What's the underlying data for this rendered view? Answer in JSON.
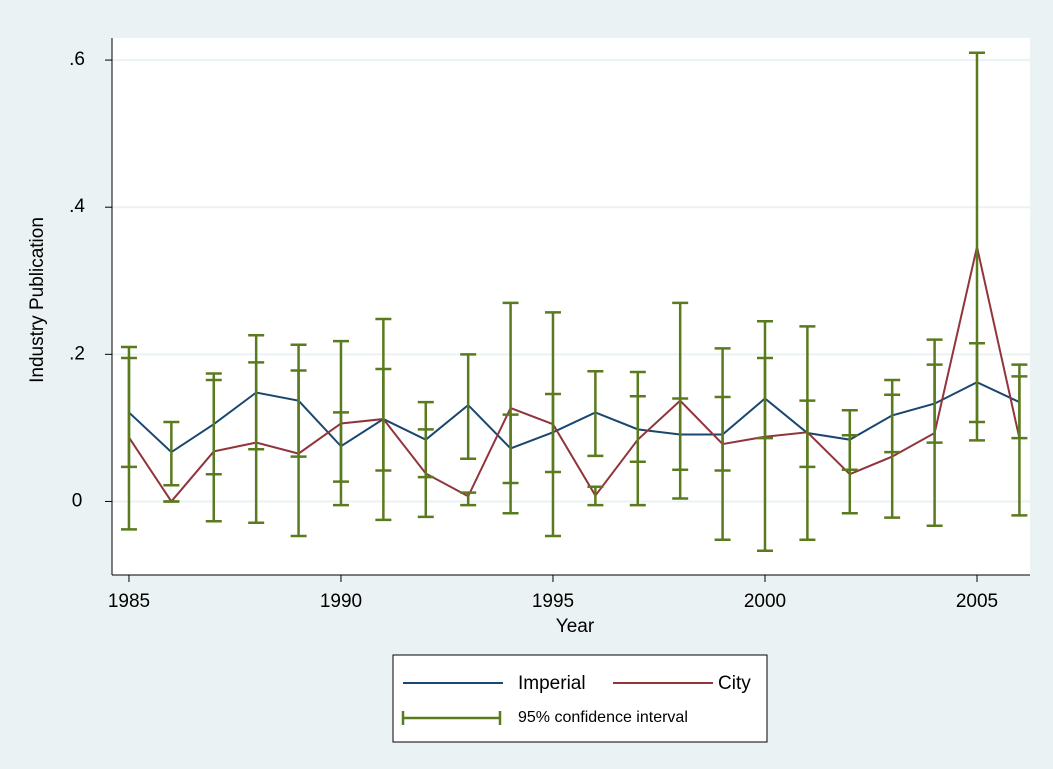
{
  "chart_data": {
    "type": "line",
    "x_label": "Year",
    "y_label": "Industry Publication",
    "x": [
      1985,
      1986,
      1987,
      1988,
      1989,
      1990,
      1991,
      1992,
      1993,
      1994,
      1995,
      1996,
      1997,
      1998,
      1999,
      2000,
      2001,
      2002,
      2003,
      2004,
      2005,
      2006
    ],
    "series": [
      {
        "name": "Imperial",
        "color": "#1a476f",
        "values": [
          0.121,
          0.067,
          0.105,
          0.148,
          0.137,
          0.075,
          0.112,
          0.084,
          0.131,
          0.072,
          0.094,
          0.121,
          0.098,
          0.091,
          0.091,
          0.14,
          0.093,
          0.084,
          0.117,
          0.133,
          0.162,
          0.135
        ],
        "ci_low": [
          0.047,
          0.022,
          0.037,
          0.071,
          0.061,
          0.027,
          0.042,
          0.033,
          0.058,
          0.025,
          0.04,
          0.062,
          0.054,
          0.043,
          0.042,
          0.086,
          0.047,
          0.043,
          0.067,
          0.08,
          0.108,
          0.086
        ],
        "ci_high": [
          0.195,
          0.108,
          0.165,
          0.226,
          0.213,
          0.121,
          0.18,
          0.135,
          0.2,
          0.118,
          0.146,
          0.177,
          0.143,
          0.14,
          0.142,
          0.195,
          0.137,
          0.124,
          0.165,
          0.186,
          0.215,
          0.186
        ]
      },
      {
        "name": "City",
        "color": "#90353b",
        "values": [
          0.087,
          0,
          0.068,
          0.08,
          0.065,
          0.106,
          0.112,
          0.038,
          0.007,
          0.127,
          0.105,
          0.008,
          0.084,
          0.137,
          0.078,
          0.088,
          0.094,
          0.037,
          0.061,
          0.093,
          0.346,
          0.086
        ],
        "ci_low": [
          -0.038,
          0,
          -0.027,
          -0.029,
          -0.047,
          -0.005,
          -0.025,
          -0.021,
          -0.005,
          -0.016,
          -0.047,
          -0.005,
          -0.005,
          0.004,
          -0.052,
          -0.067,
          -0.052,
          -0.016,
          -0.022,
          -0.033,
          0.083,
          -0.019
        ],
        "ci_high": [
          0.21,
          0,
          0.174,
          0.189,
          0.178,
          0.218,
          0.248,
          0.098,
          0.012,
          0.27,
          0.257,
          0.02,
          0.176,
          0.27,
          0.208,
          0.245,
          0.238,
          0.09,
          0.145,
          0.22,
          0.61,
          0.17
        ]
      }
    ],
    "ci_name": "95% confidence interval",
    "ci_color": "#5a7a1e",
    "xlim": [
      1984.6,
      2006.25
    ],
    "xticks": [
      1985,
      1990,
      1995,
      2000,
      2005
    ],
    "ylim": [
      -0.1,
      0.63
    ],
    "yticks": [
      0,
      {
        "value": 0.2,
        "label": ".2"
      },
      {
        "value": 0.4,
        "label": ".4"
      },
      {
        "value": 0.6,
        "label": ".6"
      }
    ],
    "grid": true
  }
}
